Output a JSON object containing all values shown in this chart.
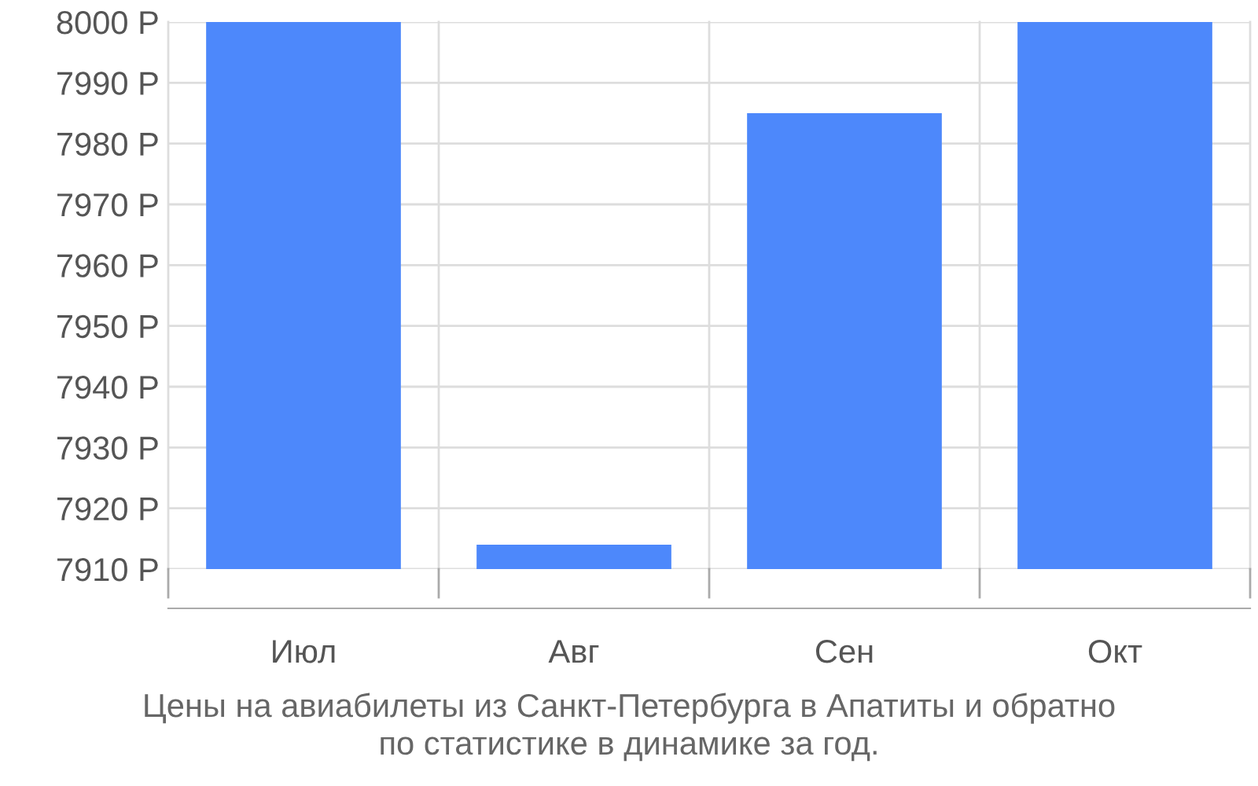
{
  "chart_data": {
    "type": "bar",
    "title": "Цены на авиабилеты из Санкт-Петербурга в Апатиты и обратно\nпо статистике в динамике за год.",
    "categories": [
      "Июл",
      "Авг",
      "Сен",
      "Окт"
    ],
    "values": [
      8000,
      7914,
      7985,
      8000
    ],
    "color": "#4d88fb",
    "ylim": [
      7910,
      8000
    ],
    "yticks": [
      {
        "value": 7910,
        "label": "7910 Р"
      },
      {
        "value": 7920,
        "label": "7920 Р"
      },
      {
        "value": 7930,
        "label": "7930 Р"
      },
      {
        "value": 7940,
        "label": "7940 Р"
      },
      {
        "value": 7950,
        "label": "7950 Р"
      },
      {
        "value": 7960,
        "label": "7960 Р"
      },
      {
        "value": 7970,
        "label": "7970 Р"
      },
      {
        "value": 7980,
        "label": "7980 Р"
      },
      {
        "value": 7990,
        "label": "7990 Р"
      },
      {
        "value": 8000,
        "label": "8000 Р"
      }
    ],
    "grid": true,
    "legend": false
  }
}
